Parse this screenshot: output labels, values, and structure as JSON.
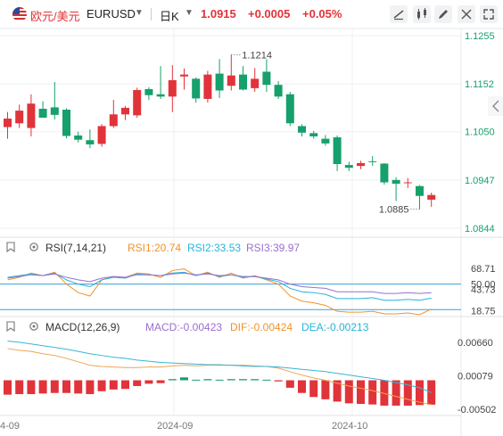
{
  "header": {
    "pair_cn": "欧元/美元",
    "symbol": "EURUSD",
    "period": "日K",
    "price": "1.0915",
    "change": "+0.0005",
    "change_pct": "+0.05%"
  },
  "colors": {
    "up": "#e1333a",
    "down": "#16a06b",
    "price_axis": "#16a06b",
    "rsi1": "#f0932b",
    "rsi2": "#27b4d6",
    "rsi3": "#9a6fd1",
    "macd_bar": "#e1333a",
    "dif": "#f0a354",
    "dea": "#37b5d9"
  },
  "chart_data": [
    {
      "type": "candlestick",
      "name": "EURUSD daily",
      "x_labels": [
        "2024-09",
        "2024-10"
      ],
      "y_ticks": [
        1.1255,
        1.1152,
        1.105,
        1.0947,
        1.0844
      ],
      "ylim": [
        1.0844,
        1.1255
      ],
      "annotations": {
        "high_label": "1.1214",
        "low_label": "1.0885"
      },
      "candles": [
        {
          "o": 1.106,
          "h": 1.1092,
          "l": 1.1035,
          "c": 1.1078
        },
        {
          "o": 1.1068,
          "h": 1.1108,
          "l": 1.1058,
          "c": 1.1095
        },
        {
          "o": 1.1058,
          "h": 1.113,
          "l": 1.104,
          "c": 1.111
        },
        {
          "o": 1.1099,
          "h": 1.1115,
          "l": 1.108,
          "c": 1.108
        },
        {
          "o": 1.1102,
          "h": 1.1156,
          "l": 1.1076,
          "c": 1.1086
        },
        {
          "o": 1.1097,
          "h": 1.11,
          "l": 1.1036,
          "c": 1.1041
        },
        {
          "o": 1.1042,
          "h": 1.105,
          "l": 1.1027,
          "c": 1.1033
        },
        {
          "o": 1.1032,
          "h": 1.1055,
          "l": 1.1015,
          "c": 1.1023
        },
        {
          "o": 1.1024,
          "h": 1.1066,
          "l": 1.1018,
          "c": 1.1062
        },
        {
          "o": 1.1062,
          "h": 1.1118,
          "l": 1.1058,
          "c": 1.1087
        },
        {
          "o": 1.1087,
          "h": 1.1105,
          "l": 1.1075,
          "c": 1.1101
        },
        {
          "o": 1.1085,
          "h": 1.1144,
          "l": 1.108,
          "c": 1.1139
        },
        {
          "o": 1.1141,
          "h": 1.1145,
          "l": 1.1118,
          "c": 1.1128
        },
        {
          "o": 1.113,
          "h": 1.119,
          "l": 1.112,
          "c": 1.1125
        },
        {
          "o": 1.1125,
          "h": 1.1192,
          "l": 1.1092,
          "c": 1.116
        },
        {
          "o": 1.1168,
          "h": 1.1185,
          "l": 1.114,
          "c": 1.1172
        },
        {
          "o": 1.1163,
          "h": 1.1166,
          "l": 1.1112,
          "c": 1.1121
        },
        {
          "o": 1.112,
          "h": 1.118,
          "l": 1.1112,
          "c": 1.1172
        },
        {
          "o": 1.1174,
          "h": 1.1205,
          "l": 1.1122,
          "c": 1.1138
        },
        {
          "o": 1.1148,
          "h": 1.1214,
          "l": 1.1138,
          "c": 1.117
        },
        {
          "o": 1.1172,
          "h": 1.119,
          "l": 1.1138,
          "c": 1.114
        },
        {
          "o": 1.1143,
          "h": 1.1186,
          "l": 1.1135,
          "c": 1.1163
        },
        {
          "o": 1.1178,
          "h": 1.1205,
          "l": 1.1135,
          "c": 1.115
        },
        {
          "o": 1.115,
          "h": 1.1158,
          "l": 1.112,
          "c": 1.1125
        },
        {
          "o": 1.113,
          "h": 1.1135,
          "l": 1.1062,
          "c": 1.1068
        },
        {
          "o": 1.1062,
          "h": 1.1066,
          "l": 1.104,
          "c": 1.1048
        },
        {
          "o": 1.1047,
          "h": 1.1052,
          "l": 1.1035,
          "c": 1.104
        },
        {
          "o": 1.1035,
          "h": 1.1043,
          "l": 1.102,
          "c": 1.1025
        },
        {
          "o": 1.1038,
          "h": 1.1042,
          "l": 1.0966,
          "c": 1.0981
        },
        {
          "o": 1.0979,
          "h": 1.0986,
          "l": 1.0966,
          "c": 1.0973
        },
        {
          "o": 1.0977,
          "h": 1.0988,
          "l": 1.097,
          "c": 1.0983
        },
        {
          "o": 1.0987,
          "h": 1.0998,
          "l": 1.0977,
          "c": 1.0986
        },
        {
          "o": 1.0982,
          "h": 1.0983,
          "l": 1.0937,
          "c": 1.0942
        },
        {
          "o": 1.0947,
          "h": 1.0953,
          "l": 1.0902,
          "c": 1.0939
        },
        {
          "o": 1.0941,
          "h": 1.0951,
          "l": 1.093,
          "c": 1.0942
        },
        {
          "o": 1.0934,
          "h": 1.0936,
          "l": 1.0885,
          "c": 1.0913
        },
        {
          "o": 1.0905,
          "h": 1.092,
          "l": 1.089,
          "c": 1.0915
        }
      ]
    },
    {
      "type": "line",
      "name": "RSI",
      "title": "RSI(7,14,21)",
      "legend": [
        "RSI1:20.74",
        "RSI2:33.53",
        "RSI3:39.97"
      ],
      "y_ticks": [
        68.71,
        50.0,
        43.73,
        18.75
      ],
      "reference_lines": [
        50.0,
        20.0
      ],
      "ylim": [
        15,
        78
      ],
      "series": [
        {
          "name": "RSI1",
          "values": [
            55,
            58,
            63,
            60,
            64,
            50,
            40,
            36,
            55,
            59,
            58,
            63,
            62,
            58,
            66,
            68,
            60,
            64,
            58,
            63,
            57,
            60,
            55,
            50,
            36,
            30,
            28,
            25,
            18,
            17,
            17,
            18,
            15,
            15,
            16,
            14,
            20.74
          ]
        },
        {
          "name": "RSI2",
          "values": [
            58,
            60,
            62,
            60,
            63,
            55,
            50,
            47,
            55,
            58,
            57,
            62,
            61,
            60,
            63,
            64,
            60,
            63,
            59,
            61,
            58,
            59,
            56,
            53,
            45,
            41,
            40,
            38,
            33,
            33,
            33,
            34,
            31,
            31,
            32,
            31,
            33.53
          ]
        },
        {
          "name": "RSI3",
          "values": [
            57,
            59,
            61,
            60,
            62,
            58,
            55,
            53,
            57,
            59,
            58,
            61,
            61,
            60,
            62,
            63,
            61,
            62,
            60,
            61,
            59,
            59,
            57,
            55,
            50,
            47,
            46,
            45,
            41,
            41,
            41,
            41,
            39,
            39,
            40,
            39,
            39.97
          ]
        }
      ]
    },
    {
      "type": "bar+line",
      "name": "MACD",
      "title": "MACD(12,26,9)",
      "legend": [
        "MACD:-0.00423",
        "DIF:-0.00424",
        "DEA:-0.00213"
      ],
      "y_ticks": [
        0.0066,
        0.00079,
        -0.00502
      ],
      "y_tick_labels": [
        "0.00660",
        "0.00079",
        "-0.00502"
      ],
      "ylim": [
        -0.0058,
        0.0075
      ],
      "x_labels": [
        "4-09",
        "2024-09",
        "2024-10"
      ],
      "macd": [
        -0.0025,
        -0.0024,
        -0.0024,
        -0.0023,
        -0.0022,
        -0.0022,
        -0.0023,
        -0.0024,
        -0.0019,
        -0.0016,
        -0.0015,
        -0.001,
        -0.0006,
        -0.0005,
        0.0002,
        0.0005,
        0.0001,
        0.0002,
        0.0001,
        0.0002,
        0.0002,
        0.0002,
        0.0001,
        -0.0002,
        -0.0013,
        -0.0022,
        -0.0029,
        -0.0033,
        -0.0037,
        -0.004,
        -0.0041,
        -0.0042,
        -0.0044,
        -0.0044,
        -0.0044,
        -0.0043,
        -0.00423
      ],
      "dif": [
        0.0055,
        0.0052,
        0.005,
        0.0046,
        0.0043,
        0.0038,
        0.0032,
        0.0026,
        0.0024,
        0.0023,
        0.0022,
        0.0022,
        0.0023,
        0.0023,
        0.0025,
        0.0026,
        0.0025,
        0.0026,
        0.0026,
        0.0026,
        0.0026,
        0.0025,
        0.0024,
        0.0021,
        0.0015,
        0.0009,
        0.0004,
        0.0,
        -0.0005,
        -0.001,
        -0.0014,
        -0.0018,
        -0.0023,
        -0.0028,
        -0.0033,
        -0.0038,
        -0.00424
      ],
      "dea": [
        0.0068,
        0.0066,
        0.0063,
        0.006,
        0.0057,
        0.0054,
        0.005,
        0.0046,
        0.0043,
        0.004,
        0.0038,
        0.0035,
        0.0033,
        0.0031,
        0.003,
        0.0029,
        0.0028,
        0.0027,
        0.0027,
        0.0026,
        0.0025,
        0.0024,
        0.0024,
        0.0023,
        0.0021,
        0.0019,
        0.0017,
        0.0015,
        0.0012,
        0.0009,
        0.0006,
        0.0003,
        0.0,
        -0.0004,
        -0.0008,
        -0.0013,
        -0.00213
      ]
    }
  ]
}
